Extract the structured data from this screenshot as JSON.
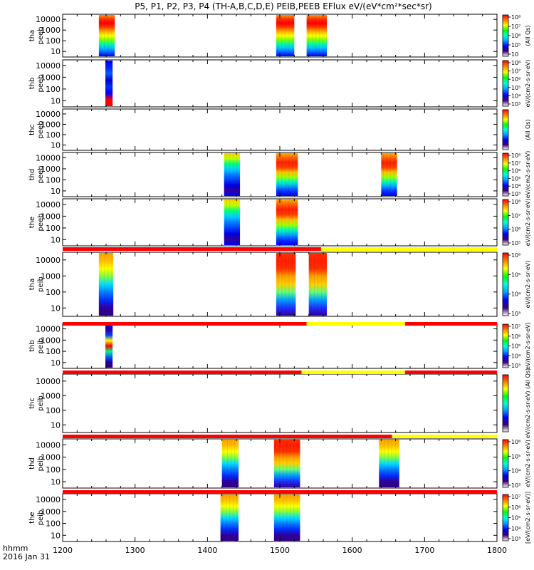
{
  "title": "P5, P1, P2, P3, P4 (TH-A,B,C,D,E) PEIB,PEEB EFlux eV/(eV*cm²*sec*sr)",
  "footer": {
    "label1": "hhmm",
    "label2": "2016 Jan 31"
  },
  "chart_data": {
    "type": "heatmap",
    "title": "P5, P1, P2, P3, P4 (TH-A,B,C,D,E) PEIB,PEEB EFlux eV/(eV*cm²*sec*sr)",
    "x": {
      "label": "hhmm",
      "date": "2016 Jan 31",
      "ticks": [
        "1200",
        "1300",
        "1400",
        "1500",
        "1600",
        "1700",
        "1800"
      ],
      "range": [
        "1200",
        "1800"
      ]
    },
    "y": {
      "scale": "log",
      "ticks": [
        "10",
        "100",
        "1000",
        "10000"
      ]
    },
    "colorbar": {
      "scale": "log",
      "gradient": [
        "#ffffff",
        "#3a0070",
        "#0000ff",
        "#00a0ff",
        "#00ffe0",
        "#00ff00",
        "#ffff00",
        "#ff8000",
        "#ff0000"
      ]
    },
    "panels": [
      {
        "ylabel": [
          "tha",
          "peeb"
        ],
        "cbar_ticks": [
          "10",
          "10⁵",
          "10⁶",
          "10⁷",
          "10⁸"
        ],
        "cbar_label": "(All Qs)",
        "blocks": [
          {
            "t0": 1250,
            "t1": 1272,
            "style": "hot"
          },
          {
            "t0": 1495,
            "t1": 1520,
            "style": "hot"
          },
          {
            "t0": 1537,
            "t1": 1565,
            "style": "hot"
          }
        ]
      },
      {
        "ylabel": [
          "thb",
          "peeb"
        ],
        "cbar_ticks": [
          "10³",
          "10⁴",
          "10⁵",
          "10⁶",
          "10⁷",
          "10⁸"
        ],
        "cbar_label": "eV/(cm2-s-sr-eV)",
        "blocks": [
          {
            "t0": 1259,
            "t1": 1269,
            "style": "spike"
          }
        ]
      },
      {
        "ylabel": [
          "thc",
          "peeb"
        ],
        "cbar_ticks": [],
        "cbar_label": "(All Qs)",
        "blocks": []
      },
      {
        "ylabel": [
          "thd",
          "peeb"
        ],
        "cbar_ticks": [
          "10³",
          "10⁴",
          "10⁵",
          "10⁶",
          "10⁷",
          "10⁸"
        ],
        "cbar_label": "eV/(cm2-s-sr-eV)",
        "blocks": [
          {
            "t0": 1423,
            "t1": 1445,
            "style": "cool"
          },
          {
            "t0": 1495,
            "t1": 1525,
            "style": "warm"
          },
          {
            "t0": 1640,
            "t1": 1662,
            "style": "warm"
          }
        ]
      },
      {
        "ylabel": [
          "the",
          "peeb"
        ],
        "cbar_ticks": [
          "10⁵",
          "10⁶",
          "10⁷",
          "10⁸"
        ],
        "cbar_label": "eV/(cm2-s-sr-eV)",
        "blocks": [
          {
            "t0": 1423,
            "t1": 1445,
            "style": "cool"
          },
          {
            "t0": 1495,
            "t1": 1525,
            "style": "warm"
          }
        ]
      },
      {
        "ylabel": [
          "tha",
          "peib"
        ],
        "cbar_ticks": [
          "10³",
          "10⁴",
          "10⁵",
          "10⁶"
        ],
        "cbar_label": "eV/(cm2-s-sr-eV)",
        "blocks": [
          {
            "t0": 1250,
            "t1": 1270,
            "style": "ion"
          },
          {
            "t0": 1495,
            "t1": 1522,
            "style": "ionhot"
          },
          {
            "t0": 1540,
            "t1": 1565,
            "style": "ionhot"
          }
        ]
      },
      {
        "ylabel": [
          "thb",
          "peib"
        ],
        "cbar_ticks": [
          "10³",
          "10⁴",
          "10⁵",
          "10⁶",
          "10⁷"
        ],
        "cbar_label": "eV/(cm2-s-sr-eV)",
        "blocks": [
          {
            "t0": 1259,
            "t1": 1269,
            "style": "ionspike"
          }
        ]
      },
      {
        "ylabel": [
          "thc",
          "peib"
        ],
        "cbar_ticks": [],
        "cbar_label": "eV/(cm2-s-sr-eV) (All Qs)",
        "blocks": []
      },
      {
        "ylabel": [
          "thd",
          "peib"
        ],
        "cbar_ticks": [
          "10³",
          "10⁴",
          "10⁵",
          "10⁶"
        ],
        "cbar_label": "eV/(cm2-s-sr-eV)",
        "blocks": [
          {
            "t0": 1420,
            "t1": 1443,
            "style": "ion"
          },
          {
            "t0": 1492,
            "t1": 1528,
            "style": "ionhot"
          },
          {
            "t0": 1637,
            "t1": 1665,
            "style": "ion"
          }
        ]
      },
      {
        "ylabel": [
          "the",
          "peib"
        ],
        "cbar_ticks": [
          "10³",
          "10⁴",
          "10⁵",
          "10⁶",
          "10⁷"
        ],
        "cbar_label": "[eV/(cm2-s-sr-eV)]",
        "blocks": [
          {
            "t0": 1418,
            "t1": 1443,
            "style": "ion"
          },
          {
            "t0": 1492,
            "t1": 1528,
            "style": "ion"
          }
        ]
      }
    ],
    "mode_bars": [
      {
        "segments": [
          {
            "t0": 1200,
            "t1": 1557,
            "color": "#ff0000"
          },
          {
            "t0": 1557,
            "t1": 1800,
            "color": "#ffff00"
          }
        ]
      },
      {
        "segments": [
          {
            "t0": 1200,
            "t1": 1537,
            "color": "#ff0000"
          },
          {
            "t0": 1537,
            "t1": 1673,
            "color": "#ffff00"
          },
          {
            "t0": 1673,
            "t1": 1800,
            "color": "#ff0000"
          }
        ]
      },
      {
        "segments": [
          {
            "t0": 1200,
            "t1": 1530,
            "color": "#ff0000"
          },
          {
            "t0": 1530,
            "t1": 1673,
            "color": "#ffff00"
          },
          {
            "t0": 1673,
            "t1": 1800,
            "color": "#ff0000"
          }
        ]
      },
      {
        "segments": [
          {
            "t0": 1200,
            "t1": 1655,
            "color": "#ff0000"
          },
          {
            "t0": 1655,
            "t1": 1800,
            "color": "#ffff00"
          }
        ]
      },
      {
        "segments": [
          {
            "t0": 1200,
            "t1": 1800,
            "color": "#ff0000"
          }
        ]
      }
    ]
  }
}
